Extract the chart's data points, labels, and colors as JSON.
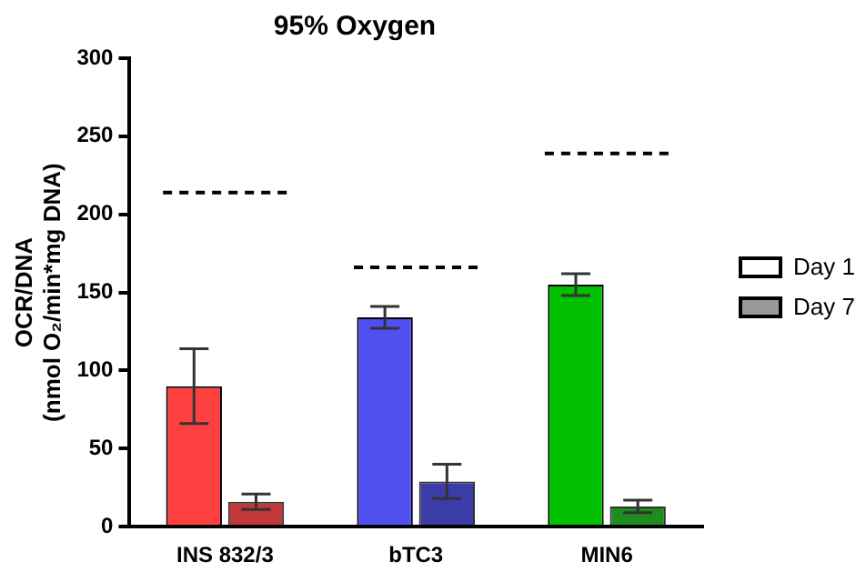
{
  "chart_data": {
    "type": "bar",
    "title": "95% Oxygen",
    "ylabel": "OCR/DNA\n(nmol O₂/min*mg DNA)",
    "categories": [
      "INS 832/3",
      "bTC3",
      "MIN6"
    ],
    "series": [
      {
        "name": "Day 1",
        "color": "#ffffff",
        "colors": [
          "#ff4040",
          "#5050f0",
          "#00c000"
        ],
        "values": [
          90,
          134,
          155
        ],
        "errors": [
          24,
          7,
          7
        ]
      },
      {
        "name": "Day 7",
        "color": "#9a9a9a",
        "colors": [
          "#c03838",
          "#3c3ca8",
          "#1e8c1e"
        ],
        "values": [
          16,
          29,
          13
        ],
        "errors": [
          5,
          11,
          4
        ]
      }
    ],
    "ref_lines": [
      {
        "axis": "y",
        "value": 214,
        "line_style": "dashed",
        "color": "#000000"
      },
      {
        "axis": "y",
        "value": 166,
        "line_style": "dashed",
        "color": "#000000"
      },
      {
        "axis": "y",
        "value": 239,
        "line_style": "dashed",
        "color": "#000000"
      }
    ],
    "ylim": [
      0,
      300
    ],
    "yticks": [
      0,
      50,
      100,
      150,
      200,
      250,
      300
    ],
    "grid": false,
    "legend": "right"
  }
}
